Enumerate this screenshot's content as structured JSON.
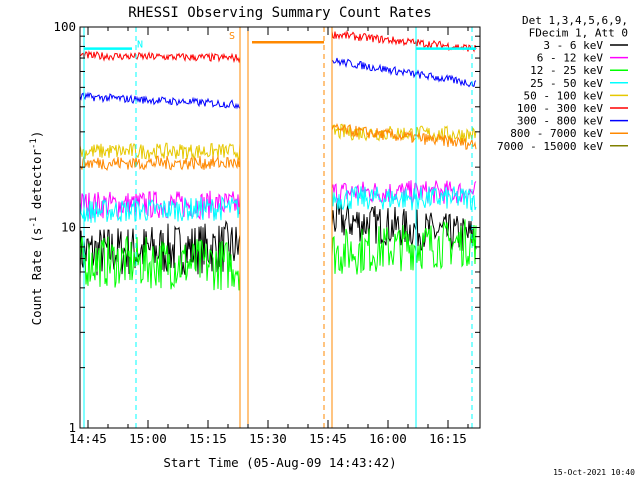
{
  "chart_data": {
    "type": "line",
    "title": "RHESSI Observing Summary Count Rates",
    "xlabel": "Start Time (05-Aug-09 14:43:42)",
    "ylabel": "Count Rate (s",
    "ylabel_sup": "-1",
    "ylabel_tail": " detector",
    "ylabel_tail_sup": "-1",
    "ylabel_close": ")",
    "y_scale": "log",
    "ylim": [
      1,
      100
    ],
    "xlim": [
      "14:43",
      "16:23"
    ],
    "x_ticks": [
      {
        "t": "14:45",
        "label": "14:45"
      },
      {
        "t": "15:00",
        "label": "15:00"
      },
      {
        "t": "15:15",
        "label": "15:15"
      },
      {
        "t": "15:30",
        "label": "15:30"
      },
      {
        "t": "15:45",
        "label": "15:45"
      },
      {
        "t": "16:00",
        "label": "16:00"
      },
      {
        "t": "16:15",
        "label": "16:15"
      }
    ],
    "y_ticks": [
      {
        "v": 1,
        "label": "1"
      },
      {
        "v": 10,
        "label": "10"
      },
      {
        "v": 100,
        "label": "100"
      }
    ],
    "legend": {
      "placement": "right",
      "header": [
        "Det 1,3,4,5,6,9,",
        "FDecim 1, Att 0"
      ],
      "entries": [
        {
          "label": "3 - 6 keV",
          "color": "#000000"
        },
        {
          "label": "6 - 12 keV",
          "color": "#ff00ff"
        },
        {
          "label": "12 - 25 keV",
          "color": "#00ff00"
        },
        {
          "label": "25 - 50 keV",
          "color": "#00ffff"
        },
        {
          "label": "50 - 100 keV",
          "color": "#e6c800"
        },
        {
          "label": "100 - 300 keV",
          "color": "#ff0000"
        },
        {
          "label": "300 - 800 keV",
          "color": "#0000ff"
        },
        {
          "label": "800 - 7000 keV",
          "color": "#ff8800"
        },
        {
          "label": "7000 - 15000 keV",
          "color": "#808000"
        }
      ]
    },
    "series": [
      {
        "band": "3 - 6 keV",
        "color": "#000000",
        "segments": [
          {
            "t0": "14:43",
            "t1": "15:23",
            "v0": 7.5,
            "v1": 8.0,
            "noise": 0.13
          },
          {
            "t0": "15:46",
            "t1": "16:22",
            "v0": 11.0,
            "v1": 9.0,
            "noise": 0.1
          }
        ]
      },
      {
        "band": "6 - 12 keV",
        "color": "#ff00ff",
        "segments": [
          {
            "t0": "14:43",
            "t1": "15:23",
            "v0": 13.0,
            "v1": 13.0,
            "noise": 0.07
          },
          {
            "t0": "15:46",
            "t1": "16:22",
            "v0": 15.0,
            "v1": 15.0,
            "noise": 0.06
          }
        ]
      },
      {
        "band": "12 - 25 keV",
        "color": "#00ff00",
        "segments": [
          {
            "t0": "14:43",
            "t1": "15:23",
            "v0": 6.8,
            "v1": 6.5,
            "noise": 0.13
          },
          {
            "t0": "15:46",
            "t1": "16:22",
            "v0": 7.5,
            "v1": 8.5,
            "noise": 0.12
          }
        ]
      },
      {
        "band": "25 - 50 keV",
        "color": "#00ffff",
        "segments": [
          {
            "t0": "14:43",
            "t1": "15:23",
            "v0": 12.0,
            "v1": 12.5,
            "noise": 0.06
          },
          {
            "t0": "15:46",
            "t1": "16:22",
            "v0": 14.0,
            "v1": 14.0,
            "noise": 0.06
          }
        ]
      },
      {
        "band": "50 - 100 keV",
        "color": "#e6c800",
        "segments": [
          {
            "t0": "14:43",
            "t1": "15:23",
            "v0": 24.0,
            "v1": 24.0,
            "noise": 0.04
          },
          {
            "t0": "15:46",
            "t1": "16:22",
            "v0": 30.0,
            "v1": 29.0,
            "noise": 0.04
          }
        ]
      },
      {
        "band": "100 - 300 keV",
        "color": "#ff0000",
        "segments": [
          {
            "t0": "14:43",
            "t1": "15:23",
            "v0": 72.0,
            "v1": 70.0,
            "noise": 0.02
          },
          {
            "t0": "15:46",
            "t1": "16:22",
            "v0": 92.0,
            "v1": 78.0,
            "noise": 0.02
          }
        ]
      },
      {
        "band": "300 - 800 keV",
        "color": "#0000ff",
        "segments": [
          {
            "t0": "14:43",
            "t1": "15:23",
            "v0": 45.0,
            "v1": 41.0,
            "noise": 0.02
          },
          {
            "t0": "15:46",
            "t1": "16:22",
            "v0": 68.0,
            "v1": 52.0,
            "noise": 0.02
          }
        ]
      },
      {
        "band": "800 - 7000 keV",
        "color": "#ff8800",
        "segments": [
          {
            "t0": "14:43",
            "t1": "15:23",
            "v0": 21.0,
            "v1": 21.0,
            "noise": 0.035
          },
          {
            "t0": "15:46",
            "t1": "16:22",
            "v0": 31.0,
            "v1": 26.0,
            "noise": 0.03
          },
          {
            "t0": "15:26",
            "t1": "15:44",
            "v0": 84.0,
            "v1": 84.0,
            "noise": 0.0
          }
        ]
      }
    ],
    "markers": [
      {
        "t": "14:44",
        "color": "#00ffff",
        "style": "solid"
      },
      {
        "t": "14:57",
        "color": "#00ffff",
        "style": "dashed"
      },
      {
        "t": "15:23",
        "color": "#ff8800",
        "style": "solid"
      },
      {
        "t": "15:25",
        "color": "#ff8800",
        "style": "solid"
      },
      {
        "t": "15:44",
        "color": "#ff8800",
        "style": "dashed"
      },
      {
        "t": "15:46",
        "color": "#ff8800",
        "style": "solid"
      },
      {
        "t": "16:07",
        "color": "#00ffff",
        "style": "solid"
      },
      {
        "t": "16:21",
        "color": "#00ffff",
        "style": "dashed"
      }
    ],
    "flag_bars": [
      {
        "t0": "14:44",
        "t1": "14:56",
        "v": 78.0,
        "color": "#00ffff"
      },
      {
        "t0": "16:07",
        "t1": "16:22",
        "v": 78.0,
        "color": "#00ffff"
      }
    ],
    "flags": [
      {
        "t": "14:58",
        "v": 79.0,
        "text": "N",
        "color": "#00ffff"
      },
      {
        "t": "15:21",
        "v": 87.0,
        "text": "S",
        "color": "#ff8800"
      }
    ],
    "timestamp": "15-Oct-2021 10:40"
  }
}
